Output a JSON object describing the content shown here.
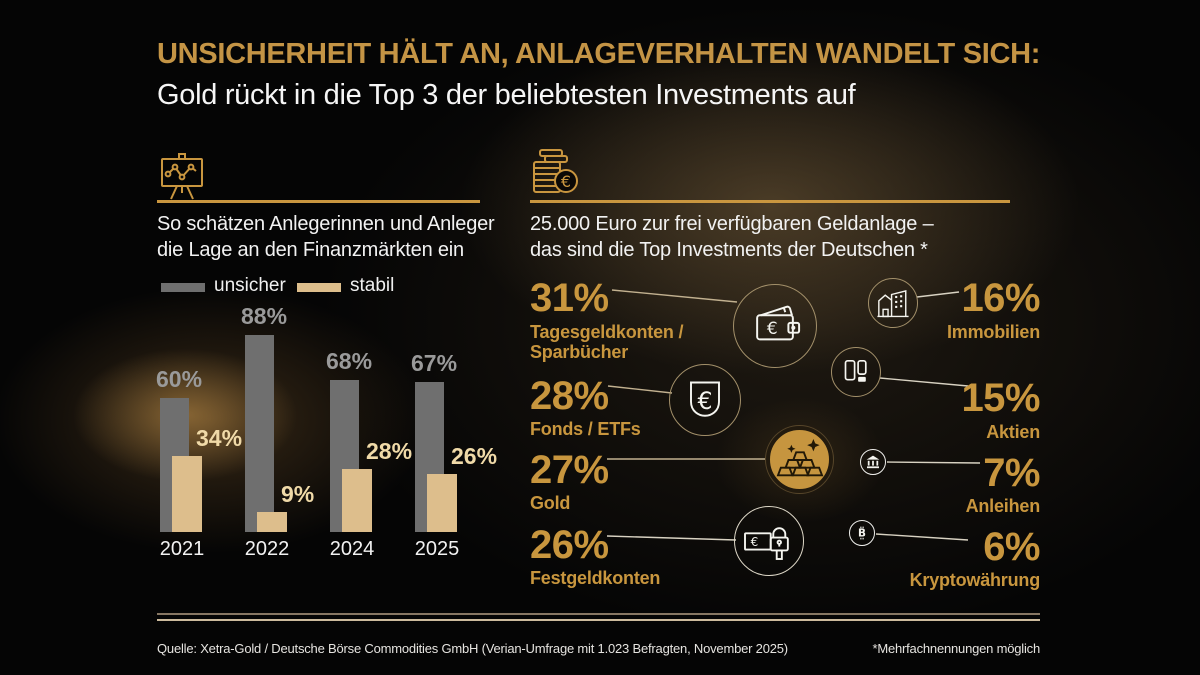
{
  "header": {
    "title": "UNSICHERHEIT HÄLT AN, ANLAGEVERHALTEN WANDELT SICH:",
    "subtitle": "Gold rückt in die Top 3 der beliebtesten Investments auf"
  },
  "left_panel": {
    "icon": "chart-board-icon",
    "intro_line1": "So schätzen Anlegerinnen und Anleger",
    "intro_line2": "die Lage an den Finanzmärkten ein",
    "legend": {
      "unsicher_label": "unsicher",
      "stabil_label": "stabil"
    }
  },
  "right_panel": {
    "icon": "coins-euro-icon",
    "intro_line1": "25.000 Euro zur frei verfügbaren Geldanlage –",
    "intro_line2": "das sind die Top Investments der Deutschen *",
    "items_left": [
      {
        "value": "31%",
        "label": "Tagesgeldkonten /\nSparbücher",
        "icon": "wallet-euro-icon"
      },
      {
        "value": "28%",
        "label": "Fonds / ETFs",
        "icon": "euro-fund-icon"
      },
      {
        "value": "27%",
        "label": "Gold",
        "icon": "gold-bars-icon"
      },
      {
        "value": "26%",
        "label": "Festgeldkonten",
        "icon": "money-lock-icon"
      }
    ],
    "items_right": [
      {
        "value": "16%",
        "label": "Immobilien",
        "icon": "building-icon"
      },
      {
        "value": "15%",
        "label": "Aktien",
        "icon": "stocks-icon"
      },
      {
        "value": "7%",
        "label": "Anleihen",
        "icon": "bank-icon"
      },
      {
        "value": "6%",
        "label": "Kryptowährung",
        "icon": "bitcoin-icon"
      }
    ]
  },
  "chart_data": [
    {
      "id": "financial-market-sentiment",
      "type": "bar",
      "title": "So schätzen Anlegerinnen und Anleger die Lage an den Finanzmärkten ein",
      "categories": [
        "2021",
        "2022",
        "2024",
        "2025"
      ],
      "series": [
        {
          "name": "unsicher",
          "color": "#6F6F6F",
          "values": [
            60,
            88,
            68,
            67
          ]
        },
        {
          "name": "stabil",
          "color": "#DDBE8C",
          "values": [
            34,
            9,
            28,
            26
          ]
        }
      ],
      "value_suffix": "%",
      "ylim": [
        0,
        100
      ],
      "grid": false,
      "legend_position": "top"
    },
    {
      "id": "top-investments",
      "type": "bar",
      "title": "25.000 Euro zur frei verfügbaren Geldanlage – das sind die Top Investments der Deutschen *",
      "categories": [
        "Tagesgeldkonten / Sparbücher",
        "Fonds / ETFs",
        "Gold",
        "Festgeldkonten",
        "Immobilien",
        "Aktien",
        "Anleihen",
        "Kryptowährung"
      ],
      "values": [
        31,
        28,
        27,
        26,
        16,
        15,
        7,
        6
      ],
      "value_suffix": "%",
      "ylim": [
        0,
        100
      ],
      "grid": false
    }
  ],
  "footer": {
    "source": "Quelle: Xetra-Gold / Deutsche Börse Commodities GmbH (Verian-Umfrage mit 1.023 Befragten, November 2025)",
    "note": "*Mehrfachnennungen möglich"
  },
  "colors": {
    "accent_gold": "#C8963E",
    "bar_gray": "#6F6F6F",
    "bar_tan": "#DDBE8C",
    "value_cream": "#F0DAA8",
    "text_white": "#F2F2F2",
    "background": "#050505"
  }
}
